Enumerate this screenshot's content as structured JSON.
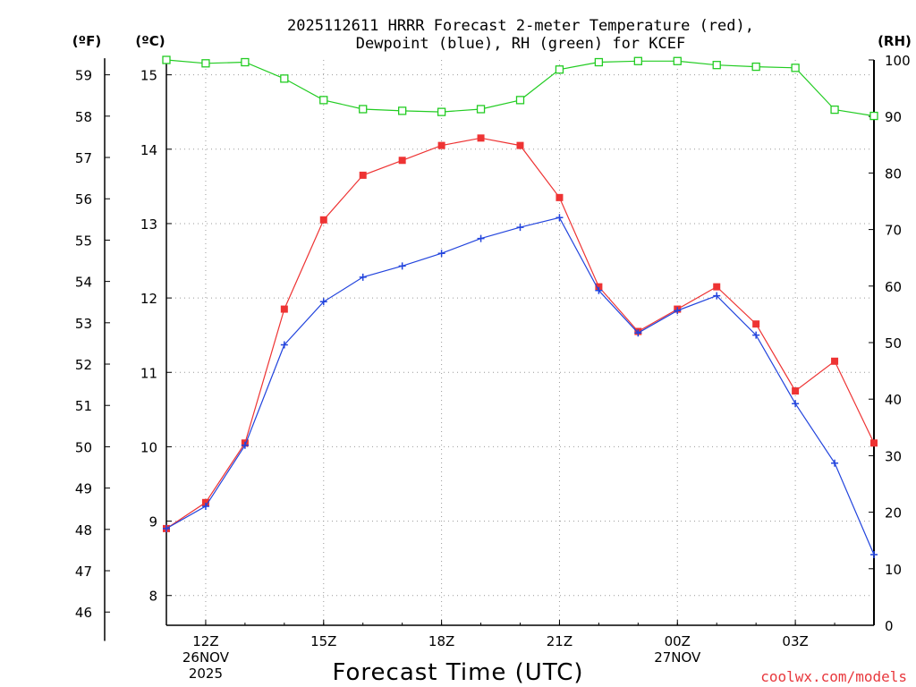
{
  "chart_data": {
    "type": "line",
    "title_line1": "2025112611 HRRR Forecast 2-meter Temperature (red),",
    "title_line2": "Dewpoint (blue), RH (green) for KCEF",
    "xlabel": "Forecast Time (UTC)",
    "credit": "coolwx.com/models",
    "units": {
      "fahrenheit": "(ºF)",
      "celsius": "(ºC)",
      "rh": "(RH)"
    },
    "x_range_hours": [
      11,
      29
    ],
    "celsius_range": [
      7.6,
      15.2
    ],
    "rh_range": [
      0,
      100
    ],
    "celsius_ticks": [
      "8",
      "9",
      "10",
      "11",
      "12",
      "13",
      "14",
      "15"
    ],
    "fahrenheit_ticks": [
      "46",
      "47",
      "48",
      "49",
      "50",
      "51",
      "52",
      "53",
      "54",
      "55",
      "56",
      "57",
      "58",
      "59"
    ],
    "rh_ticks": [
      "0",
      "10",
      "20",
      "30",
      "40",
      "50",
      "60",
      "70",
      "80",
      "90",
      "100"
    ],
    "x_ticks": [
      {
        "hour": 12,
        "lines": [
          "12Z",
          "26NOV",
          "2025"
        ]
      },
      {
        "hour": 15,
        "lines": [
          "15Z"
        ]
      },
      {
        "hour": 18,
        "lines": [
          "18Z"
        ]
      },
      {
        "hour": 21,
        "lines": [
          "21Z"
        ]
      },
      {
        "hour": 24,
        "lines": [
          "00Z",
          "27NOV"
        ]
      },
      {
        "hour": 27,
        "lines": [
          "03Z"
        ]
      }
    ],
    "hours": [
      11,
      12,
      13,
      14,
      15,
      16,
      17,
      18,
      19,
      20,
      21,
      22,
      23,
      24,
      25,
      26,
      27,
      28,
      29
    ],
    "series": [
      {
        "name": "Temperature",
        "color": "#ee3333",
        "marker": "filled-square",
        "values": [
          8.9,
          9.25,
          10.05,
          11.85,
          13.05,
          13.65,
          13.85,
          14.05,
          14.15,
          14.05,
          13.35,
          12.15,
          11.55,
          11.85,
          12.15,
          11.65,
          10.75,
          11.15,
          10.05
        ]
      },
      {
        "name": "Dewpoint",
        "color": "#2244dd",
        "marker": "plus",
        "values": [
          8.9,
          9.2,
          10.02,
          11.37,
          11.95,
          12.28,
          12.43,
          12.6,
          12.8,
          12.95,
          13.08,
          12.1,
          11.53,
          11.83,
          12.03,
          11.5,
          10.58,
          9.78,
          8.55
        ]
      },
      {
        "name": "RH",
        "color": "#22cc22",
        "marker": "open-square",
        "values": [
          100,
          99.4,
          99.6,
          96.7,
          92.9,
          91.3,
          91.0,
          90.8,
          91.3,
          92.9,
          98.3,
          99.6,
          99.8,
          99.8,
          99.1,
          98.8,
          98.6,
          91.2,
          90.1
        ]
      }
    ]
  }
}
